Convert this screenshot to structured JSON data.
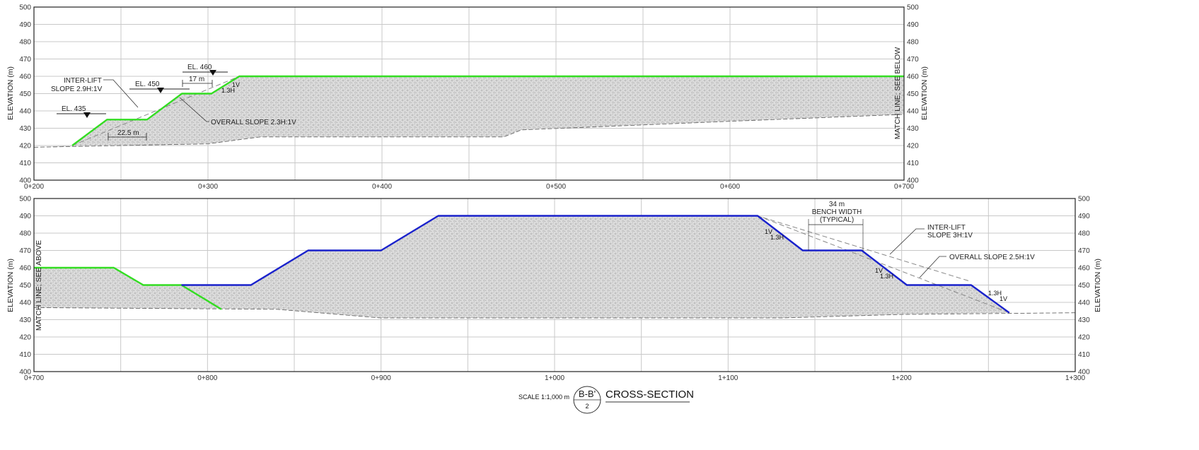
{
  "elevation_ticks": [
    "500",
    "490",
    "480",
    "470",
    "460",
    "450",
    "440",
    "430",
    "420",
    "410",
    "400"
  ],
  "top": {
    "station_ticks": [
      "0+200",
      "0+300",
      "0+400",
      "0+500",
      "0+600",
      "0+700"
    ],
    "left_axis_label": "ELEVATION (m)",
    "right_axis_label": "ELEVATION (m)",
    "match_line": "MATCH LINE; SEE BELOW",
    "labels": {
      "el460": "EL. 460",
      "el450": "EL. 450",
      "el435": "EL. 435",
      "interlift_1": "INTER-LIFT",
      "interlift_2": "SLOPE 2.9H:1V",
      "bench17": "17 m",
      "one_v": "1V",
      "one_three_h": "1.3H",
      "overall": "OVERALL SLOPE 2.3H:1V",
      "bench225": "22.5 m"
    }
  },
  "bottom": {
    "station_ticks": [
      "0+700",
      "0+800",
      "0+900",
      "1+000",
      "1+100",
      "1+200",
      "1+300"
    ],
    "left_axis_label": "ELEVATION (m)",
    "right_axis_label": "ELEVATION (m)",
    "match_line": "MATCH LINE; SEE ABOVE",
    "labels": {
      "bench_1": "34 m",
      "bench_2": "BENCH WIDTH",
      "bench_3": "(TYPICAL)",
      "interlift_1": "INTER-LIFT",
      "interlift_2": "SLOPE 3H:1V",
      "overall": "OVERALL SLOPE 2.5H:1V",
      "v1": "1V",
      "h1": "1.3H",
      "v2": "1V",
      "h2": "1.3H",
      "h3": "1.3H",
      "v3": "1V"
    }
  },
  "title_block": {
    "scale": "SCALE 1:1,000 m",
    "section": "B-B'",
    "sheet": "2",
    "title": "CROSS-SECTION"
  },
  "colors": {
    "top_design_line": "#33dd22",
    "bottom_design_line": "#1a22cc",
    "grid": "#c8c8c8",
    "frame": "#222222",
    "fill": "#d4d4d4"
  },
  "profiles": {
    "top_design_green": [
      [
        222,
        420
      ],
      [
        242,
        435
      ],
      [
        265,
        435
      ],
      [
        285,
        450
      ],
      [
        302,
        450
      ],
      [
        318,
        460
      ],
      [
        700,
        460
      ]
    ],
    "top_ground": [
      [
        200,
        419
      ],
      [
        300,
        421
      ],
      [
        330,
        425
      ],
      [
        470,
        425
      ],
      [
        480,
        429
      ],
      [
        600,
        434
      ],
      [
        700,
        438
      ]
    ],
    "top_overall_dashed": [
      [
        222,
        420
      ],
      [
        318,
        460
      ]
    ],
    "bottom_design_green": [
      [
        700,
        460
      ],
      [
        746,
        460
      ],
      [
        763,
        450
      ],
      [
        785,
        450
      ],
      [
        808,
        436
      ]
    ],
    "bottom_design_blue": [
      [
        785,
        450
      ],
      [
        825,
        450
      ],
      [
        858,
        470
      ],
      [
        900,
        470
      ],
      [
        933,
        490
      ],
      [
        1117,
        490
      ],
      [
        1143,
        470
      ],
      [
        1177,
        470
      ],
      [
        1203,
        450
      ],
      [
        1240,
        450
      ],
      [
        1262,
        434
      ]
    ],
    "bottom_ground": [
      [
        700,
        437
      ],
      [
        840,
        436
      ],
      [
        900,
        431
      ],
      [
        1130,
        431
      ],
      [
        1200,
        433
      ],
      [
        1300,
        434
      ]
    ],
    "bottom_overall_dashed": [
      [
        1117,
        490
      ],
      [
        1262,
        434
      ]
    ],
    "bottom_interlift_dashed": [
      [
        1120,
        489
      ],
      [
        1240,
        452
      ]
    ]
  }
}
